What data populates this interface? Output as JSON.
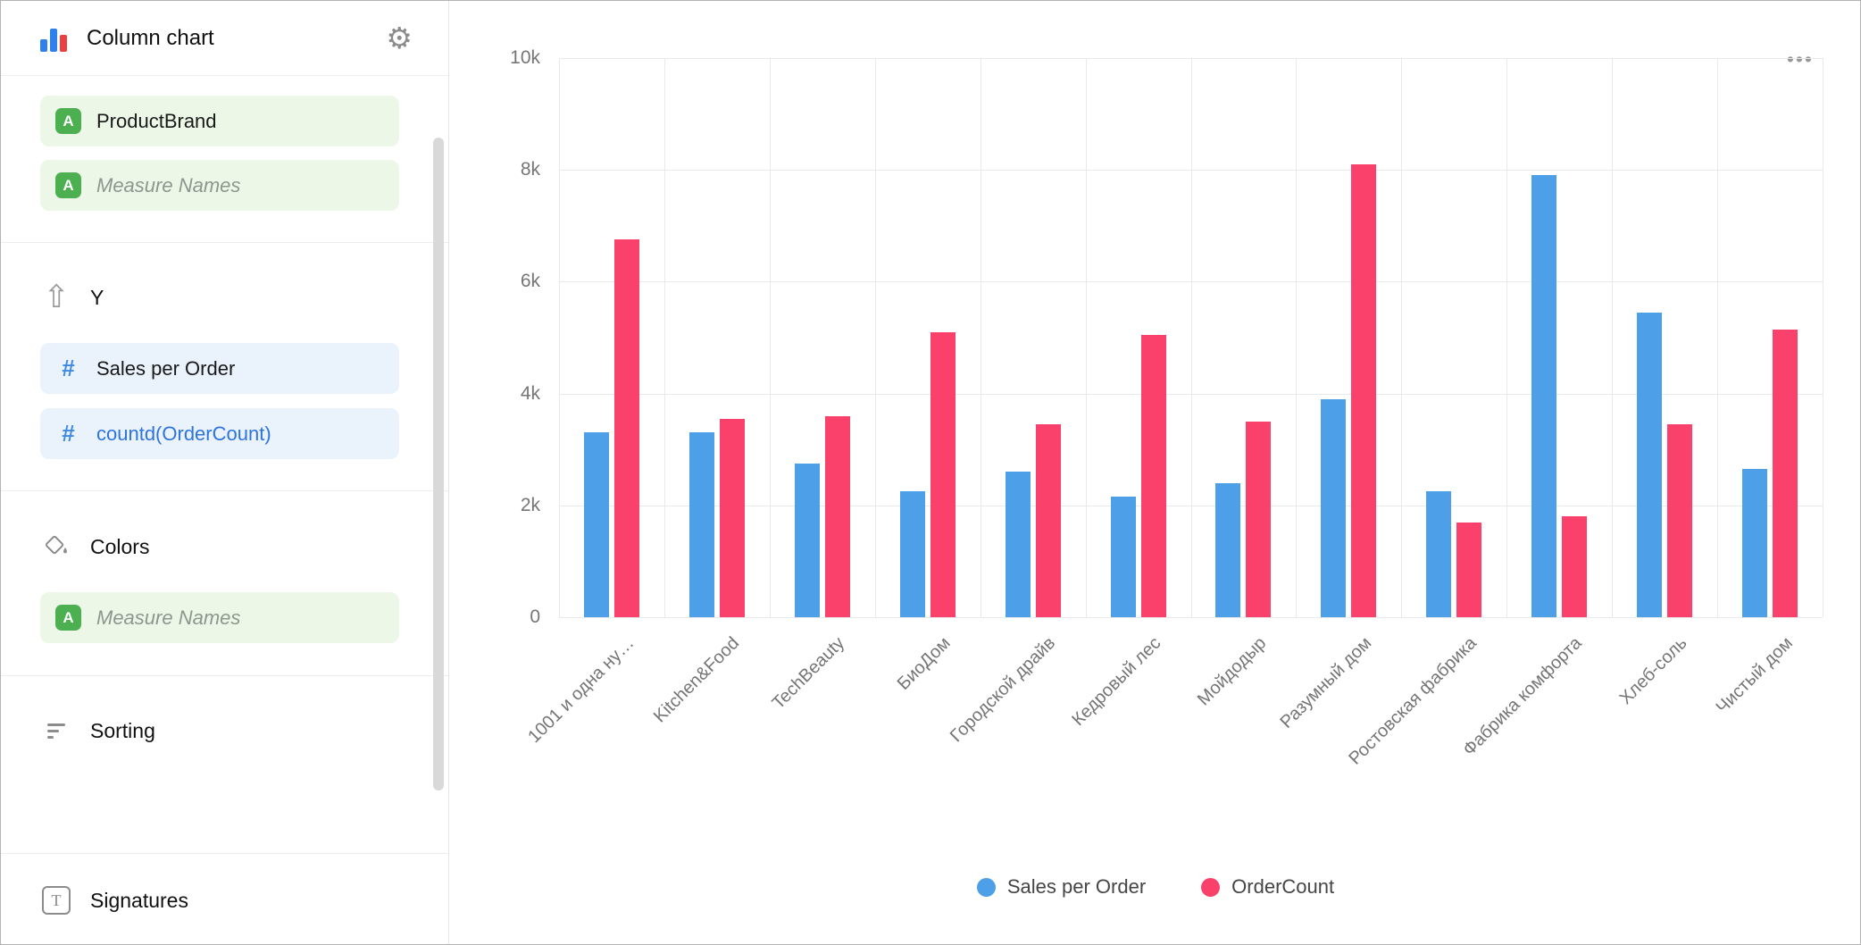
{
  "sidebar": {
    "title": "Column chart",
    "icons": {
      "gear": "⚙",
      "arrow_up": "⇧",
      "dimension_letter": "A",
      "measure_hash": "#",
      "signatures_letter": "T"
    },
    "fields": {
      "product_brand": "ProductBrand",
      "measure_names": "Measure Names",
      "sales_per_order": "Sales per Order",
      "countd_order_count": "countd(OrderCount)"
    },
    "labels": {
      "y_axis": "Y",
      "colors": "Colors",
      "sorting": "Sorting",
      "signatures": "Signatures"
    }
  },
  "chart": {
    "more_label": "•••"
  },
  "chart_data": {
    "type": "bar",
    "title": "",
    "xlabel": "",
    "ylabel": "",
    "categories": [
      "1001 и одна ну…",
      "Kitchen&Food",
      "TechBeauty",
      "БиоДом",
      "Городской драйв",
      "Кедровый лес",
      "Мойдодыр",
      "Разумный дом",
      "Ростовская фабрика",
      "Фабрика комфорта",
      "Хлеб-соль",
      "Чистый дом"
    ],
    "series": [
      {
        "name": "Sales per Order",
        "color": "#4D9FE8",
        "values": [
          3300,
          3300,
          2750,
          2250,
          2600,
          2150,
          2400,
          3900,
          2250,
          7900,
          5450,
          2650
        ]
      },
      {
        "name": "OrderCount",
        "color": "#F9416B",
        "values": [
          6750,
          3550,
          3600,
          5100,
          3450,
          5050,
          3500,
          8100,
          1700,
          1800,
          3450,
          5150
        ]
      }
    ],
    "ylim": [
      0,
      10000
    ],
    "yticks": {
      "values": [
        0,
        2000,
        4000,
        6000,
        8000,
        10000
      ],
      "labels": [
        "0",
        "2k",
        "4k",
        "6k",
        "8k",
        "10k"
      ]
    },
    "grid": true,
    "legend_position": "bottom"
  }
}
